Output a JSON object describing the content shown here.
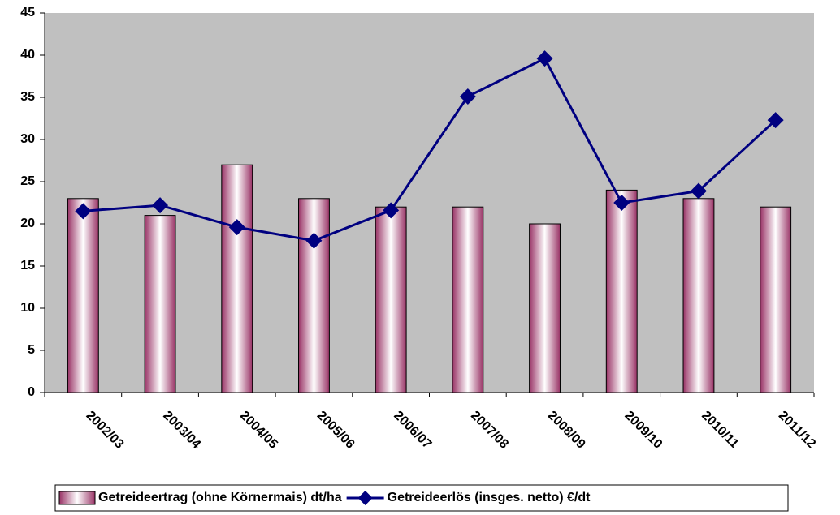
{
  "chart_data": {
    "type": "bar",
    "categories": [
      "2002/03",
      "2003/04",
      "2004/05",
      "2005/06",
      "2006/07",
      "2007/08",
      "2008/09",
      "2009/10",
      "2010/11",
      "2011/12"
    ],
    "series": [
      {
        "name": "Getreideertrag (ohne Körnermais) dt/ha",
        "type": "bar",
        "color": "#993366",
        "values": [
          23,
          21,
          27,
          23,
          22,
          22,
          20,
          24,
          23,
          22
        ]
      },
      {
        "name": "Getreideerlös (insges. netto) €/dt",
        "type": "line",
        "color": "#000080",
        "values": [
          21.5,
          22.2,
          19.6,
          18,
          21.6,
          35.1,
          39.6,
          22.5,
          23.9,
          32.3
        ]
      }
    ],
    "ylim": [
      0,
      45
    ],
    "yticks": [
      0,
      5,
      10,
      15,
      20,
      25,
      30,
      35,
      40,
      45
    ],
    "grid": false,
    "legend": "bottom"
  }
}
